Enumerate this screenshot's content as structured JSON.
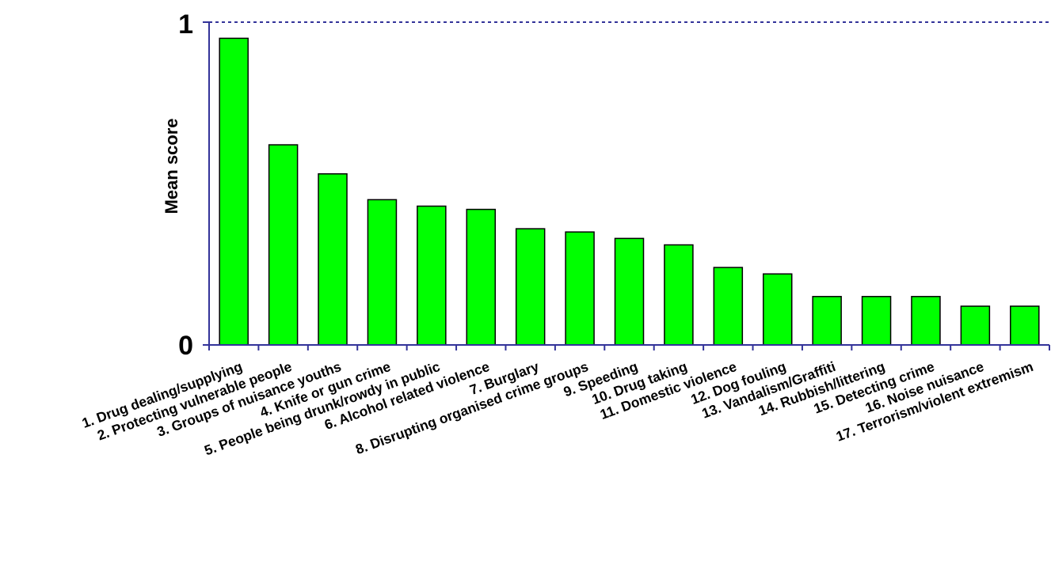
{
  "chart_data": {
    "type": "bar",
    "ylabel": "Mean score",
    "ylim": [
      0,
      1
    ],
    "yticks": [
      "0",
      "1"
    ],
    "grid": "dotted line at 1",
    "colors": {
      "bar_fill": "#00ff00",
      "bar_stroke": "#000000",
      "axis": "#333399"
    },
    "categories": [
      "1. Drug dealing/supplying",
      "2. Protecting vulnerable people",
      "3. Groups of nuisance youths",
      "4. Knife or gun crime",
      "5. People being drunk/rowdy in public",
      "6. Alcohol related violence",
      "7. Burglary",
      "8. Disrupting organised crime groups",
      "9. Speeding",
      "10. Drug taking",
      "11. Domestic violence",
      "12. Dog fouling",
      "13. Vandalism/Graffiti",
      "14. Rubbish/littering",
      "15. Detecting crime",
      "16. Noise nuisance",
      "17. Terrorism/violent extremism"
    ],
    "values": [
      0.95,
      0.62,
      0.53,
      0.45,
      0.43,
      0.42,
      0.36,
      0.35,
      0.33,
      0.31,
      0.24,
      0.22,
      0.15,
      0.15,
      0.15,
      0.12,
      0.12
    ]
  }
}
